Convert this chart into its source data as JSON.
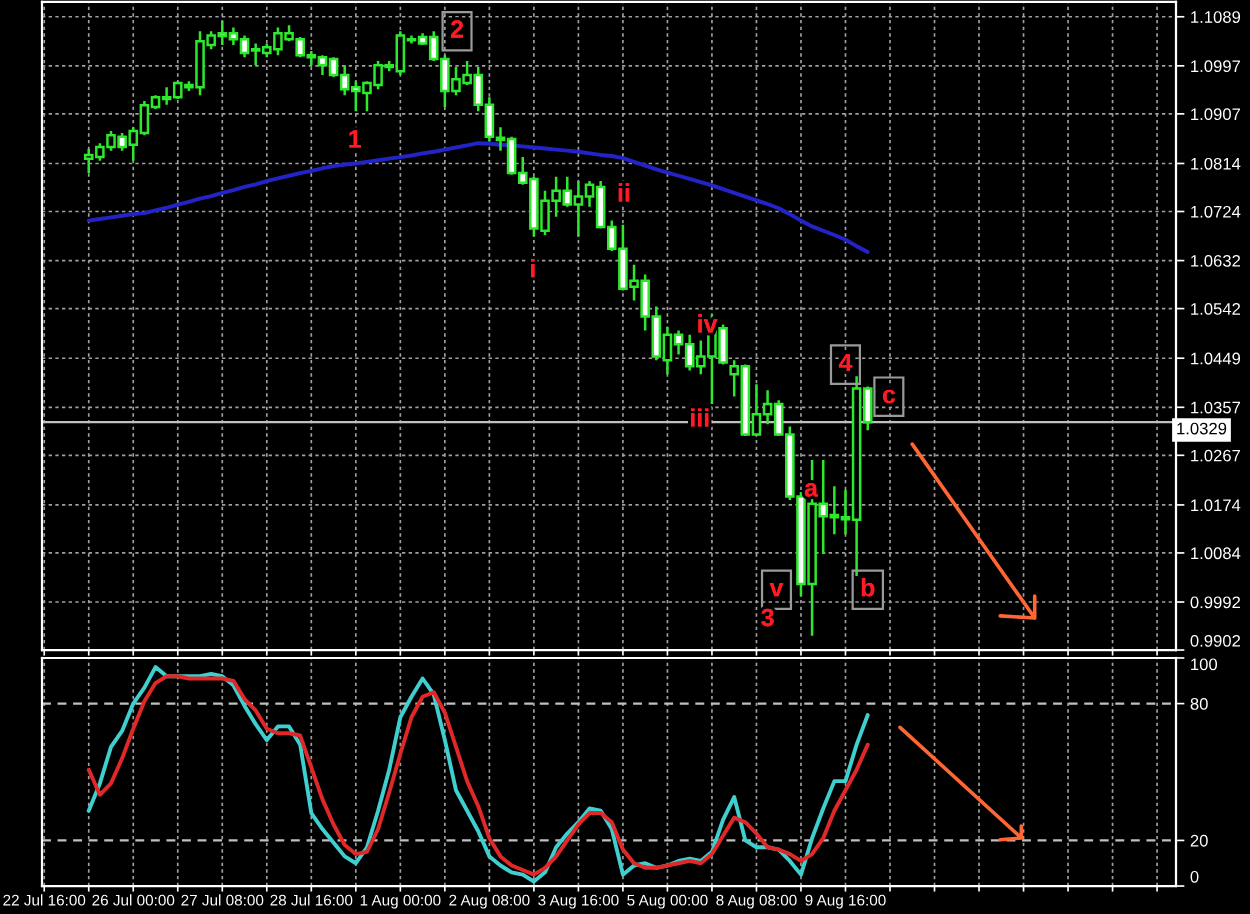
{
  "chart_data": [
    {
      "type": "candlestick",
      "categories": [
        "22 Jul 16:00",
        null,
        null,
        null,
        null,
        null,
        null,
        null,
        "26 Jul 00:00",
        null,
        null,
        null,
        null,
        null,
        null,
        null,
        "27 Jul 08:00",
        null,
        null,
        null,
        null,
        null,
        null,
        null,
        "28 Jul 16:00",
        null,
        null,
        null,
        null,
        null,
        null,
        null,
        "1 Aug 00:00",
        null,
        null,
        null,
        null,
        null,
        null,
        null,
        "2 Aug 08:00",
        null,
        null,
        null,
        null,
        null,
        null,
        null,
        "3 Aug 16:00",
        null,
        null,
        null,
        null,
        null,
        null,
        null,
        "5 Aug 00:00",
        null,
        null,
        null,
        null,
        null,
        null,
        null,
        "8 Aug 08:00",
        null,
        null,
        null,
        null,
        null,
        null,
        null,
        "9 Aug 16:00",
        null,
        null,
        null,
        null,
        null,
        null,
        null,
        null,
        null,
        null,
        null,
        null,
        null,
        null,
        null,
        null,
        null,
        null,
        null,
        null,
        null,
        null,
        null,
        null,
        null,
        null,
        null,
        null,
        null
      ],
      "series": [
        {
          "ohlc": [
            null,
            null,
            null,
            null,
            [
              1.0823,
              1.0841,
              1.0796,
              1.083
            ],
            [
              1.0826,
              1.0852,
              1.0819,
              1.0845
            ],
            [
              1.0845,
              1.0875,
              1.0838,
              1.0867
            ],
            [
              1.0864,
              1.0871,
              1.0838,
              1.0845
            ],
            [
              1.0849,
              1.0882,
              1.0819,
              1.0875
            ],
            [
              1.0871,
              1.0931,
              1.0867,
              1.0923
            ],
            [
              1.092,
              1.0942,
              1.0916,
              1.0938
            ],
            [
              1.0935,
              1.0957,
              1.0924,
              1.0938
            ],
            [
              1.0938,
              1.0968,
              1.0935,
              1.0965
            ],
            [
              1.0961,
              1.0968,
              1.095,
              1.0957
            ],
            [
              1.0957,
              1.1062,
              1.0942,
              1.1043
            ],
            [
              1.1036,
              1.1062,
              1.1028,
              1.1054
            ],
            [
              1.1058,
              1.1081,
              1.1036,
              1.1053
            ],
            [
              1.1058,
              1.1069,
              1.1036,
              1.1047
            ],
            [
              1.1047,
              1.1054,
              1.1013,
              1.1021
            ],
            [
              1.1028,
              1.1039,
              1.0998,
              1.1026
            ],
            [
              1.1021,
              1.1039,
              1.1013,
              1.1032
            ],
            [
              1.1028,
              1.1069,
              1.1017,
              1.1058
            ],
            [
              1.1047,
              1.1073,
              1.1043,
              1.1058
            ],
            [
              1.1047,
              1.1051,
              1.1013,
              1.1017
            ],
            [
              1.1017,
              1.1025,
              1.0998,
              1.1013
            ],
            [
              1.1013,
              1.1017,
              1.098,
              1.0998
            ],
            [
              1.101,
              1.1013,
              1.0976,
              1.098
            ],
            [
              1.098,
              1.0998,
              1.0942,
              1.0953
            ],
            [
              1.0957,
              1.0968,
              1.0912,
              1.095
            ],
            [
              1.0946,
              1.0968,
              1.0912,
              1.0965
            ],
            [
              1.0961,
              1.1006,
              1.0953,
              1.0998
            ],
            [
              1.0995,
              1.1006,
              1.0987,
              1.0998
            ],
            [
              1.0987,
              1.1062,
              1.098,
              1.1054
            ],
            [
              1.1047,
              1.1054,
              1.1039,
              1.1045
            ],
            [
              1.1051,
              1.1058,
              1.1036,
              1.1039
            ],
            [
              1.1051,
              1.1062,
              1.1006,
              1.101
            ],
            [
              1.101,
              1.1017,
              1.092,
              1.095
            ],
            [
              1.095,
              1.0995,
              1.0942,
              1.0972
            ],
            [
              1.0965,
              1.1006,
              1.0961,
              1.098
            ],
            [
              1.098,
              1.0995,
              1.0912,
              1.0924
            ],
            [
              1.0924,
              1.0938,
              1.0856,
              1.0864
            ],
            [
              1.0862,
              1.0882,
              1.0838,
              1.0858
            ],
            [
              1.086,
              1.0864,
              1.0793,
              1.0796
            ],
            [
              1.0796,
              1.0826,
              1.0774,
              1.0778
            ],
            [
              1.0785,
              1.0789,
              1.0677,
              1.0692
            ],
            [
              1.0688,
              1.0763,
              1.068,
              1.0744
            ],
            [
              1.0744,
              1.0789,
              1.0714,
              1.0763
            ],
            [
              1.0763,
              1.0789,
              1.0733,
              1.0737
            ],
            [
              1.0737,
              1.0781,
              1.0677,
              1.0752
            ],
            [
              1.0752,
              1.0781,
              1.0733,
              1.0774
            ],
            [
              1.077,
              1.0781,
              1.0692,
              1.0695
            ],
            [
              1.0695,
              1.0707,
              1.065,
              1.0654
            ],
            [
              1.0654,
              1.0699,
              1.0576,
              1.0579
            ],
            [
              1.0583,
              1.0624,
              1.0557,
              1.0594
            ],
            [
              1.0594,
              1.0606,
              1.0501,
              1.0527
            ],
            [
              1.0527,
              1.0546,
              1.0445,
              1.0452
            ],
            [
              1.0445,
              1.0508,
              1.0419,
              1.0493
            ],
            [
              1.0493,
              1.0501,
              1.0456,
              1.0475
            ],
            [
              1.0475,
              1.0493,
              1.0426,
              1.0434
            ],
            [
              1.0434,
              1.0482,
              1.0419,
              1.0452
            ],
            [
              1.0452,
              1.0531,
              1.0363,
              1.0508
            ],
            [
              1.0505,
              1.0512,
              1.0437,
              1.0441
            ],
            [
              1.0419,
              1.0445,
              1.0377,
              1.0434
            ],
            [
              1.0434,
              1.0437,
              1.0303,
              1.0306
            ],
            [
              1.0306,
              1.04,
              1.0303,
              1.0344
            ],
            [
              1.0344,
              1.0389,
              1.0325,
              1.0363
            ],
            [
              1.0363,
              1.037,
              1.0303,
              1.0306
            ],
            [
              1.0306,
              1.0321,
              1.0183,
              1.019
            ],
            [
              1.019,
              1.0198,
              1.0003,
              1.0026
            ],
            [
              1.0026,
              1.0258,
              0.9929,
              1.0176
            ],
            [
              1.0176,
              1.0258,
              1.0082,
              1.0153
            ],
            [
              1.0155,
              1.0209,
              1.0119,
              1.0151
            ],
            [
              1.0147,
              1.0202,
              1.0119,
              1.0151
            ],
            [
              1.0146,
              1.0415,
              1.0041,
              1.0392
            ],
            [
              1.0392,
              1.0396,
              1.0314,
              1.0329
            ],
            null,
            null,
            null,
            null,
            null,
            null,
            null,
            null,
            null,
            null,
            null,
            null,
            null,
            null,
            null,
            null,
            null,
            null,
            null,
            null,
            null,
            null,
            null,
            null,
            null,
            null,
            null
          ],
          "color": "#2ee82e",
          "colors": [
            null,
            null,
            null,
            null,
            "#000000",
            "#000000",
            "#000000",
            "#ffffff",
            "#000000",
            "#000000",
            "#000000",
            "#000000",
            "#000000",
            "#ffffff",
            "#000000",
            "#000000",
            "#ffffff",
            "#ffffff",
            "#ffffff",
            "#ffffff",
            "#000000",
            "#000000",
            "#000000",
            "#ffffff",
            "#ffffff",
            "#ffffff",
            "#ffffff",
            "#ffffff",
            "#ffffff",
            "#000000",
            "#000000",
            "#000000",
            "#000000",
            "#ffffff",
            "#ffffff",
            "#ffffff",
            "#ffffff",
            "#000000",
            "#000000",
            "#ffffff",
            "#ffffff",
            "#ffffff",
            "#ffffff",
            "#ffffff",
            "#ffffff",
            "#000000",
            "#000000",
            "#ffffff",
            "#000000",
            "#000000",
            "#ffffff",
            "#ffffff",
            "#ffffff",
            "#000000",
            "#ffffff",
            "#ffffff",
            "#000000",
            "#ffffff",
            "#ffffff",
            "#000000",
            "#000000",
            "#ffffff",
            "#000000",
            "#ffffff",
            "#000000",
            "#000000",
            "#ffffff",
            "#ffffff",
            "#ffffff",
            "#000000",
            "#ffffff",
            "#ffffff",
            "#000000",
            "#000000",
            "#ffffff",
            null,
            null,
            null,
            null,
            null,
            null,
            null,
            null,
            null,
            null,
            null,
            null,
            null,
            null,
            null,
            null,
            null,
            null,
            null,
            null,
            null,
            null,
            null,
            null,
            null,
            null,
            null
          ]
        },
        {
          "type": "line",
          "color": "#2323c8",
          "values": [
            null,
            null,
            null,
            null,
            1.0707,
            1.071,
            1.0713,
            1.0716,
            1.0719,
            1.0721,
            1.0726,
            1.0731,
            1.0737,
            1.0742,
            1.0748,
            1.0753,
            1.0759,
            1.0764,
            1.077,
            1.0775,
            1.0781,
            1.0786,
            1.0791,
            1.0796,
            1.08,
            1.0805,
            1.0809,
            1.0812,
            1.0814,
            1.0817,
            1.082,
            1.0823,
            1.0826,
            1.0829,
            1.0833,
            1.0836,
            1.084,
            1.0844,
            1.0848,
            1.0852,
            1.0851,
            1.0849,
            1.0848,
            1.0846,
            1.0844,
            1.0842,
            1.084,
            1.0838,
            1.0836,
            1.0833,
            1.083,
            1.0828,
            1.0824,
            1.0817,
            1.081,
            1.0803,
            1.0797,
            1.0791,
            1.0785,
            1.0779,
            1.0773,
            1.0766,
            1.0759,
            1.0752,
            1.0745,
            1.0738,
            1.073,
            1.0719,
            1.0707,
            1.0696,
            1.0688,
            1.068,
            1.0671,
            1.0659,
            1.0648,
            null,
            null,
            null,
            null,
            null,
            null,
            null,
            null,
            null,
            null,
            null,
            null,
            null,
            null,
            null,
            null,
            null,
            null,
            null,
            null,
            null,
            null,
            null,
            null,
            null,
            null,
            null
          ]
        }
      ],
      "ylim": [
        0.9902,
        1.1117
      ],
      "yticks": [
        0.9902,
        0.9992,
        1.0084,
        1.0174,
        1.0267,
        1.0357,
        1.0449,
        1.0542,
        1.0632,
        1.0724,
        1.0814,
        1.0907,
        1.0997,
        1.1089
      ],
      "tick_labels": "y",
      "grid": true,
      "ref_lines": [
        {
          "axis": "y",
          "value": 1.0329,
          "label": "1.0329",
          "color": "#c0c0c0",
          "line_style": "solid"
        }
      ],
      "annotations": [
        "1",
        "2",
        "i",
        "ii",
        "iii",
        "iv",
        "v",
        "3",
        "a",
        "4",
        "b",
        "c"
      ]
    },
    {
      "type": "line",
      "categories": [
        "22 Jul 16:00",
        null,
        null,
        null,
        null,
        null,
        null,
        null,
        "26 Jul 00:00",
        null,
        null,
        null,
        null,
        null,
        null,
        null,
        "27 Jul 08:00",
        null,
        null,
        null,
        null,
        null,
        null,
        null,
        "28 Jul 16:00",
        null,
        null,
        null,
        null,
        null,
        null,
        null,
        "1 Aug 00:00",
        null,
        null,
        null,
        null,
        null,
        null,
        null,
        "2 Aug 08:00",
        null,
        null,
        null,
        null,
        null,
        null,
        null,
        "3 Aug 16:00",
        null,
        null,
        null,
        null,
        null,
        null,
        null,
        "5 Aug 00:00",
        null,
        null,
        null,
        null,
        null,
        null,
        null,
        "8 Aug 08:00",
        null,
        null,
        null,
        null,
        null,
        null,
        null,
        "9 Aug 16:00",
        null,
        null,
        null,
        null,
        null,
        null,
        null,
        null,
        null,
        null,
        null,
        null,
        null,
        null,
        null,
        null,
        null,
        null,
        null,
        null,
        null,
        null,
        null,
        null,
        null,
        null,
        null,
        null,
        null
      ],
      "series": [
        {
          "color": "#3fcfcf",
          "values": [
            null,
            null,
            null,
            null,
            33,
            45,
            61,
            68,
            80,
            87,
            96,
            92,
            92,
            92,
            92,
            93,
            92,
            88,
            79,
            71,
            64,
            70,
            70,
            62,
            32,
            25,
            19,
            13,
            10,
            17,
            33,
            51,
            74,
            83,
            91,
            84,
            64,
            42,
            33,
            24,
            13,
            9,
            6,
            5,
            2,
            6,
            17,
            23,
            28,
            34,
            33,
            25,
            5,
            9,
            10,
            8,
            9,
            11,
            12,
            11,
            15,
            29,
            39,
            20,
            17,
            17,
            16,
            11,
            5,
            21,
            34,
            46,
            46,
            62,
            75,
            null,
            null,
            null,
            null,
            null,
            null,
            null,
            null,
            null,
            null,
            null,
            null,
            null,
            null,
            null,
            null,
            null,
            null,
            null,
            null,
            null,
            null,
            null,
            null,
            null,
            null,
            null
          ]
        },
        {
          "color": "#e02828",
          "values": [
            null,
            null,
            null,
            null,
            51,
            40,
            45,
            56,
            69,
            81,
            89,
            92,
            92,
            91,
            91,
            91,
            91,
            90,
            82,
            77,
            69,
            67,
            67,
            66,
            52,
            38,
            27,
            18,
            14,
            15,
            25,
            41,
            58,
            74,
            83,
            85,
            76,
            61,
            46,
            35,
            21,
            13,
            9,
            7,
            5,
            8,
            13,
            20,
            27,
            32,
            32,
            28,
            16,
            10,
            8,
            8,
            9,
            10,
            11,
            10,
            14,
            22,
            30,
            28,
            23,
            17,
            16,
            14,
            11,
            14,
            21,
            33,
            42,
            51,
            62,
            null,
            null,
            null,
            null,
            null,
            null,
            null,
            null,
            null,
            null,
            null,
            null,
            null,
            null,
            null,
            null,
            null,
            null,
            null,
            null,
            null,
            null,
            null,
            null,
            null,
            null,
            null
          ]
        }
      ],
      "ylim": [
        0,
        100
      ],
      "yticks": [
        0,
        20,
        80,
        100
      ],
      "grid": "x",
      "ref_lines": [
        {
          "axis": "y",
          "value": 20,
          "color": "#c0c0c0",
          "line_style": "dashed"
        },
        {
          "axis": "y",
          "value": 80,
          "color": "#c0c0c0",
          "line_style": "dashed"
        }
      ]
    }
  ]
}
